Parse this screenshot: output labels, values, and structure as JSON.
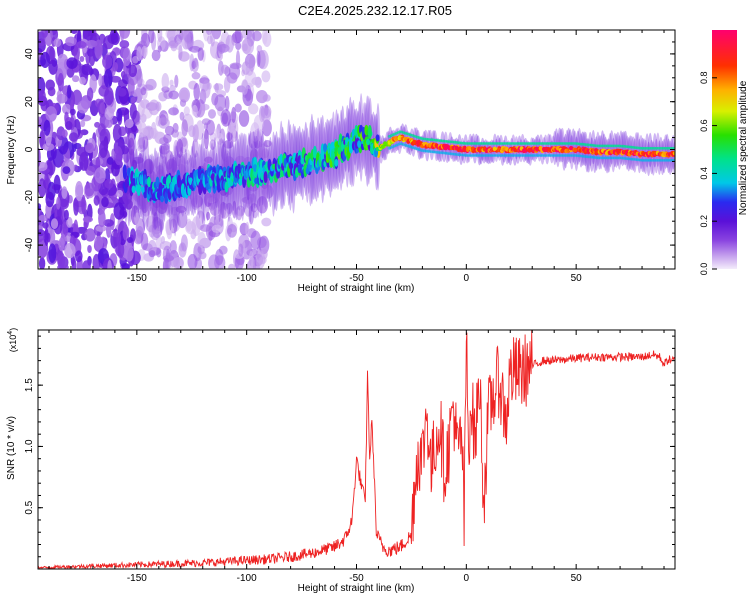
{
  "title": "C2E4.2025.232.12.17.R05",
  "chart_data": [
    {
      "type": "heatmap",
      "xlabel": "Height of straight line (km)",
      "ylabel": "Frequency (Hz)",
      "xlim": [
        -195,
        95
      ],
      "ylim": [
        -50,
        50
      ],
      "xticks": [
        -150,
        -100,
        -50,
        0,
        50
      ],
      "xtick_labels": [
        "-150",
        "-100",
        "-50",
        "0",
        "50"
      ],
      "yticks": [
        -40,
        -20,
        0,
        20,
        40
      ],
      "ytick_labels": [
        "-40",
        "-20",
        "0",
        "20",
        "40"
      ],
      "colorbar": {
        "label": "Normalized spectral amplitude",
        "range": [
          0,
          1
        ],
        "ticks": [
          0.0,
          0.2,
          0.4,
          0.6,
          0.8
        ],
        "tick_labels": [
          "0.0",
          "0.2",
          "0.4",
          "0.6",
          "0.8"
        ]
      },
      "ridge": {
        "x": [
          -155,
          -140,
          -130,
          -120,
          -110,
          -100,
          -90,
          -80,
          -70,
          -60,
          -50,
          -45,
          -40,
          -35,
          -30,
          -20,
          -10,
          0,
          10,
          20,
          30,
          40,
          50,
          60,
          70,
          80,
          90,
          95
        ],
        "frequency": [
          -12,
          -17,
          -15,
          -13,
          -12,
          -10,
          -9,
          -7,
          -5,
          -2,
          4,
          5,
          0,
          3,
          5,
          2,
          1,
          0,
          0,
          0,
          0,
          0,
          0,
          -1,
          -1,
          -2,
          -2,
          -2
        ],
        "amplitude": [
          0.3,
          0.35,
          0.3,
          0.3,
          0.35,
          0.4,
          0.4,
          0.45,
          0.45,
          0.5,
          0.5,
          0.55,
          0.65,
          0.75,
          0.85,
          0.9,
          0.95,
          0.95,
          0.95,
          0.95,
          0.95,
          0.95,
          0.95,
          0.95,
          0.95,
          0.95,
          0.95,
          0.95
        ]
      }
    },
    {
      "type": "line",
      "xlabel": "Height of straight line (km)",
      "ylabel": "SNR (10 * v/v)",
      "y_multiplier": "(x10",
      "y_multiplier_exponent": "4",
      "y_multiplier_close": ")",
      "xlim": [
        -195,
        95
      ],
      "ylim": [
        0,
        1.95
      ],
      "xticks": [
        -150,
        -100,
        -50,
        0,
        50
      ],
      "xtick_labels": [
        "-150",
        "-100",
        "-50",
        "0",
        "50"
      ],
      "yticks": [
        0.5,
        1.0,
        1.5
      ],
      "ytick_labels": [
        "0.5",
        "1.0",
        "1.5"
      ],
      "color": "#ee2222",
      "series": [
        {
          "name": "SNR",
          "x": [
            -195,
            -180,
            -160,
            -140,
            -120,
            -110,
            -100,
            -90,
            -80,
            -70,
            -60,
            -55,
            -52,
            -50,
            -48,
            -46,
            -45,
            -44,
            -43,
            -42,
            -41,
            -40,
            -38,
            -35,
            -30,
            -25,
            -24,
            -22,
            -20,
            -18,
            -16,
            -14,
            -12,
            -10,
            -8,
            -6,
            -4,
            -2,
            -1,
            0,
            1,
            2,
            4,
            6,
            8,
            10,
            12,
            15,
            18,
            20,
            25,
            30,
            35,
            40,
            50,
            60,
            70,
            80,
            85,
            88,
            90,
            92,
            95
          ],
          "y": [
            0.01,
            0.02,
            0.03,
            0.04,
            0.05,
            0.06,
            0.07,
            0.08,
            0.1,
            0.13,
            0.18,
            0.25,
            0.4,
            0.9,
            0.7,
            0.55,
            1.6,
            0.9,
            1.2,
            0.8,
            0.3,
            0.25,
            0.18,
            0.15,
            0.18,
            0.28,
            0.6,
            0.95,
            0.9,
            1.3,
            0.8,
            1.05,
            1.2,
            0.8,
            1.0,
            1.35,
            0.95,
            1.1,
            0.35,
            1.9,
            0.95,
            1.4,
            1.05,
            1.55,
            0.55,
            1.25,
            1.4,
            1.55,
            1.2,
            1.6,
            1.6,
            1.66,
            1.7,
            1.7,
            1.72,
            1.73,
            1.73,
            1.73,
            1.75,
            1.73,
            1.67,
            1.71,
            1.7
          ]
        }
      ]
    }
  ]
}
